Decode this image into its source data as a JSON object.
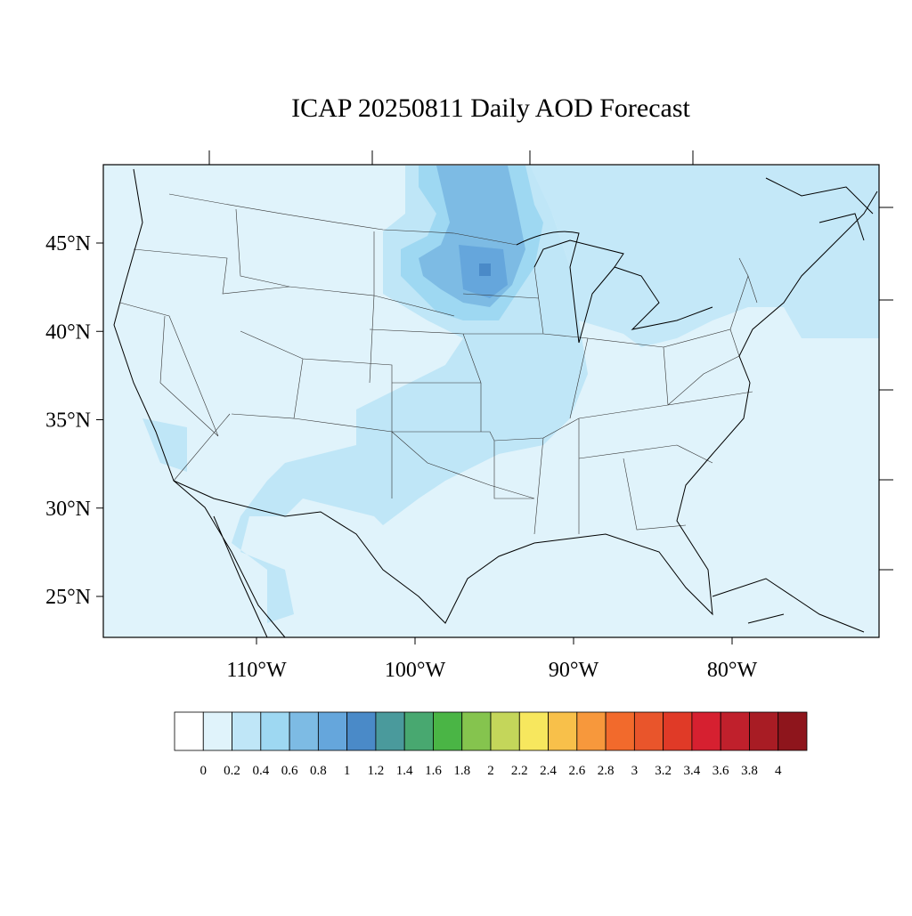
{
  "title": "ICAP 20250811 Daily AOD Forecast",
  "map": {
    "lat_labels": [
      {
        "value": 45,
        "label": "45°N"
      },
      {
        "value": 40,
        "label": "40°N"
      },
      {
        "value": 35,
        "label": "35°N"
      },
      {
        "value": 30,
        "label": "30°N"
      },
      {
        "value": 25,
        "label": "25°N"
      }
    ],
    "lon_labels": [
      {
        "value": -110,
        "label": "110°W"
      },
      {
        "value": -100,
        "label": "100°W"
      },
      {
        "value": -90,
        "label": "90°W"
      },
      {
        "value": -80,
        "label": "80°W"
      }
    ]
  },
  "colorbar": {
    "colors": [
      "#ffffff",
      "#e0f3fb",
      "#bfe6f7",
      "#9ed8f2",
      "#7dbbe4",
      "#65a6dc",
      "#4a8ac8",
      "#4a9a9c",
      "#48a870",
      "#4ab545",
      "#85c44e",
      "#c4d65a",
      "#f7e75e",
      "#f8c04a",
      "#f7983c",
      "#f26a2c",
      "#e9552b",
      "#e03a27",
      "#d62030",
      "#c0202c",
      "#a81c24",
      "#8e151c"
    ],
    "labels": [
      0,
      0.2,
      0.4,
      0.6,
      0.8,
      1,
      1.2,
      1.4,
      1.6,
      1.8,
      2,
      2.2,
      2.4,
      2.6,
      2.8,
      3,
      3.2,
      3.4,
      3.6,
      3.8,
      4
    ]
  }
}
